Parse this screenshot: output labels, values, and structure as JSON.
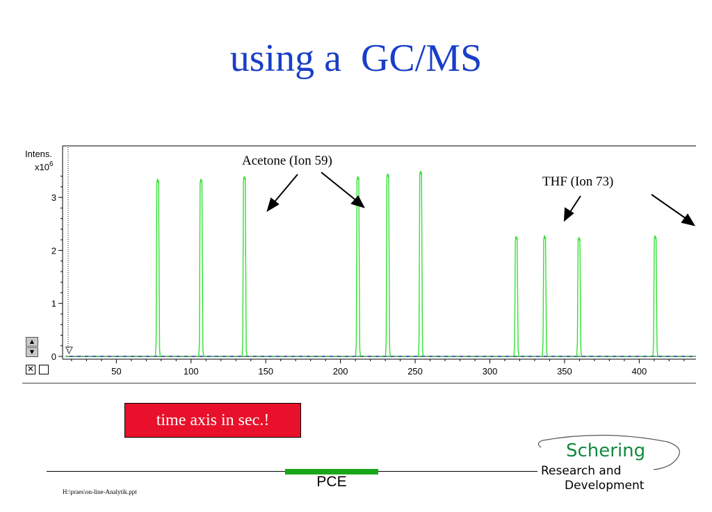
{
  "slide": {
    "title": "using a  GC/MS",
    "note": "time axis in sec.!",
    "footer_label": "PCE",
    "file_path": "H:\\praes\\on-line-Analytik.ppt"
  },
  "logo": {
    "brand": "Schering",
    "line1": "Research and",
    "line2": "Development",
    "brand_color": "#118a3c"
  },
  "colors": {
    "title": "#1a3ec8",
    "trace": "#33e033",
    "baseline": "#1a237e",
    "note_bg": "#e8102a",
    "footer_bar": "#19a619"
  },
  "chart_data": {
    "type": "line",
    "ylabel": "Intens.",
    "yscale_label": "x10",
    "yscale_exp": "6",
    "xlim": [
      14,
      438
    ],
    "ylim": [
      0,
      3.5
    ],
    "x_ticks": [
      50,
      100,
      150,
      200,
      250,
      300,
      350,
      400
    ],
    "y_ticks": [
      0,
      1,
      2,
      3
    ],
    "grid": false,
    "series": [
      {
        "peaks": [
          {
            "x": 78,
            "height": 3.35
          },
          {
            "x": 107,
            "height": 3.35
          },
          {
            "x": 136,
            "height": 3.4
          },
          {
            "x": 212,
            "height": 3.4
          },
          {
            "x": 232,
            "height": 3.45
          },
          {
            "x": 254,
            "height": 3.5
          },
          {
            "x": 318,
            "height": 2.27
          },
          {
            "x": 337,
            "height": 2.28
          },
          {
            "x": 360,
            "height": 2.25
          },
          {
            "x": 411,
            "height": 2.28
          }
        ]
      }
    ],
    "annotations": [
      {
        "text": "Acetone (Ion 59)",
        "arrows_to": [
          136,
          212
        ]
      },
      {
        "text": "THF (Ion 73)",
        "arrows_to": [
          337,
          437
        ]
      }
    ]
  }
}
